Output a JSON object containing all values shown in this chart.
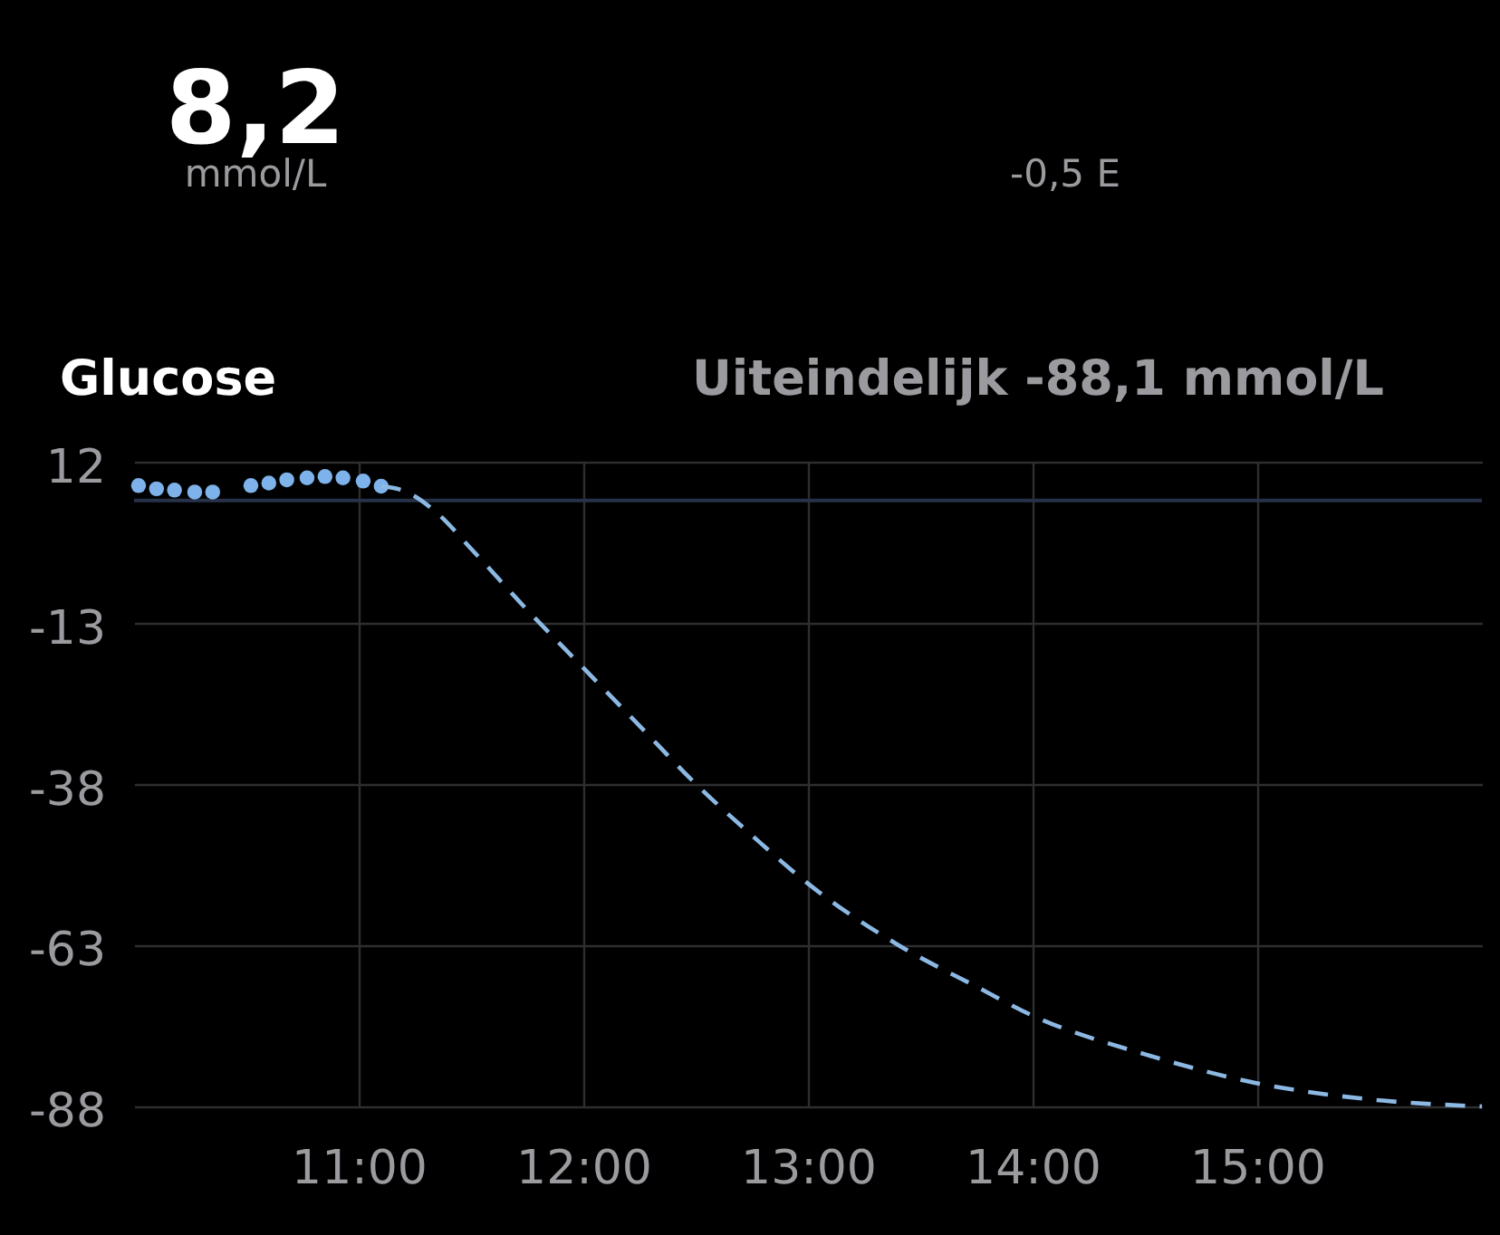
{
  "chart_data": {
    "type": "line",
    "title": "Glucose",
    "subtitle": "Uiteindelijk -88,1 mmol/L",
    "annotations": [
      "8,2",
      "mmol/L",
      "-0,5 E"
    ],
    "xlim": [
      10,
      16
    ],
    "xticks": [
      {
        "value": 11,
        "label": "11:00"
      },
      {
        "value": 12,
        "label": "12:00"
      },
      {
        "value": 13,
        "label": "13:00"
      },
      {
        "value": 14,
        "label": "14:00"
      },
      {
        "value": 15,
        "label": "15:00"
      }
    ],
    "ylim": [
      -88.1,
      12
    ],
    "yticks": [
      12,
      -13,
      -38,
      -63,
      -88
    ],
    "grid": true,
    "ref_lines": [
      {
        "axis": "y",
        "value": 6,
        "color": "#27324a"
      }
    ],
    "series": [
      {
        "type": "scatter",
        "color": "#7db3ea",
        "marker": "circle",
        "x": [
          10.02,
          10.1,
          10.18,
          10.27,
          10.35,
          10.52,
          10.6,
          10.68,
          10.77,
          10.85,
          10.93,
          11.02,
          11.1
        ],
        "values": [
          8.3,
          7.8,
          7.6,
          7.3,
          7.3,
          8.3,
          8.7,
          9.2,
          9.5,
          9.7,
          9.5,
          9.0,
          8.2
        ]
      },
      {
        "color": "#8cb9e4",
        "line_style": "dashed",
        "x": [
          11.1,
          11.2,
          11.35,
          11.5,
          11.75,
          12,
          12.25,
          12.5,
          12.75,
          13,
          13.4,
          13.75,
          14,
          14.5,
          15,
          15.5,
          16
        ],
        "values": [
          8.2,
          7.5,
          4,
          -1.5,
          -11,
          -20,
          -29,
          -38,
          -46,
          -53.5,
          -63,
          -69.5,
          -74,
          -80,
          -84.5,
          -87,
          -88.1
        ]
      }
    ]
  }
}
